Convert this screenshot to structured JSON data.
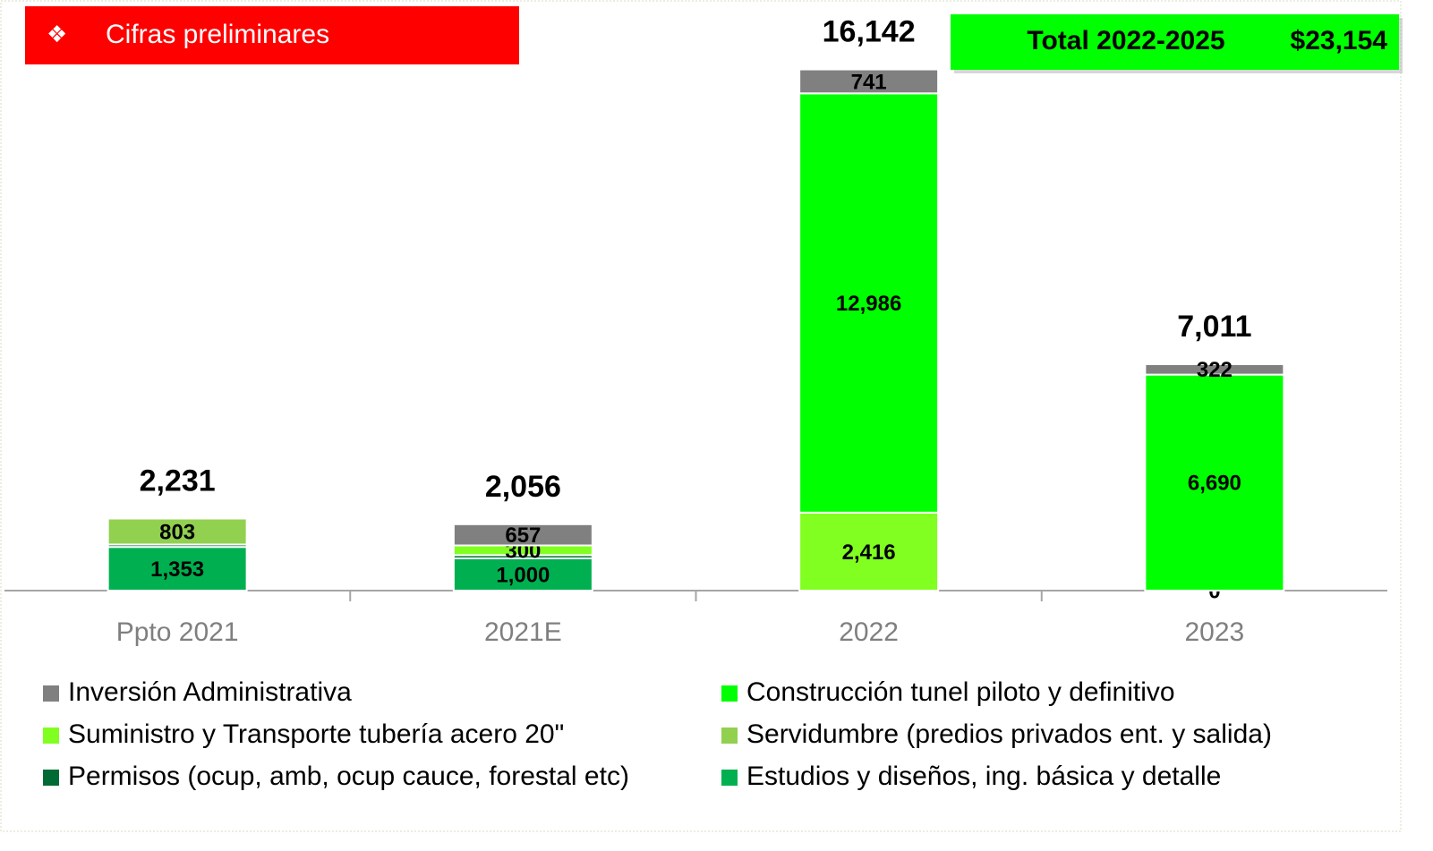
{
  "chart_data": {
    "type": "stacked_bar",
    "banner": {
      "icon": "❖",
      "text": "Cifras preliminares"
    },
    "total_box": {
      "label": "Total 2022-2025",
      "value": "$23,154"
    },
    "categories": [
      "Ppto 2021",
      "2021E",
      "2022",
      "2023"
    ],
    "series": [
      {
        "name": "Estudios y diseños, ing. básica y detalle",
        "color": "#00b050",
        "values": [
          1353,
          1000,
          null,
          null
        ],
        "value_labels": [
          "1,353",
          "1,000",
          null,
          null
        ]
      },
      {
        "name": "Permisos (ocup, amb, ocup cauce, forestal etc)",
        "color": "#006b35",
        "values": [
          75,
          99,
          null,
          null
        ],
        "value_labels": [
          null,
          null,
          null,
          null
        ]
      },
      {
        "name": "Servidumbre (predios privados ent. y salida)",
        "color": "#92d050",
        "values": [
          803,
          null,
          null,
          null
        ]
      },
      {
        "name": "Suministro y Transporte tubería acero 20\"",
        "color": "#80ff20",
        "values": [
          null,
          300,
          2416,
          0
        ],
        "value_labels": [
          null,
          "300",
          "2,416",
          "0"
        ]
      },
      {
        "name": "Construcción tunel piloto y definitivo",
        "color": "#00ff00",
        "values": [
          null,
          null,
          12986,
          6690
        ],
        "value_labels": [
          null,
          null,
          "12,986",
          "6,690"
        ]
      },
      {
        "name": "Inversión Administrativa",
        "color": "#808080",
        "values": [
          null,
          657,
          741,
          322
        ]
      }
    ],
    "totals": [
      2231,
      2056,
      16142,
      7011
    ],
    "total_labels": [
      "2,231",
      "2,056",
      "16,142",
      "7,011"
    ],
    "ylim": [
      0,
      17600
    ]
  }
}
